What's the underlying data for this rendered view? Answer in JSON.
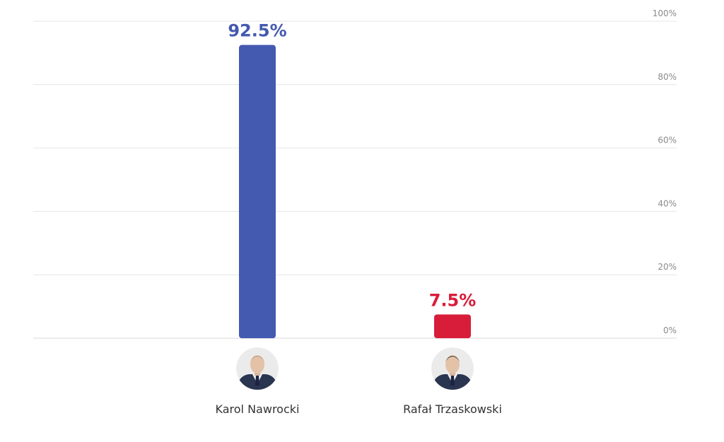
{
  "chart_data": {
    "type": "bar",
    "categories": [
      "Karol Nawrocki",
      "Rafał Trzaskowski"
    ],
    "values": [
      92.5,
      7.5
    ],
    "value_labels": [
      "92.5%",
      "7.5%"
    ],
    "colors": [
      "#4459b0",
      "#d81d3a"
    ],
    "avatars": [
      "person-photo-icon",
      "person-photo-icon"
    ],
    "ylim": [
      0,
      100
    ],
    "y_ticks": [
      0,
      20,
      40,
      60,
      80,
      100
    ],
    "y_tick_labels": [
      "0%",
      "20%",
      "40%",
      "60%",
      "80%",
      "100%"
    ],
    "y_axis_position": "right",
    "grid": true,
    "title": "",
    "xlabel": "",
    "ylabel": ""
  }
}
